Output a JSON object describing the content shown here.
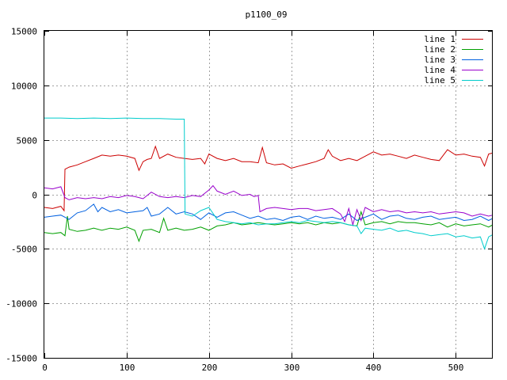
{
  "chart_data": {
    "type": "line",
    "title": "p1100_09",
    "xlabel": "",
    "ylabel": "",
    "xlim": [
      0,
      545
    ],
    "ylim": [
      -15000,
      15000
    ],
    "x_ticks": [
      "0",
      "100",
      "200",
      "300",
      "400",
      "500"
    ],
    "y_ticks": [
      "-15000",
      "-10000",
      "-5000",
      "0",
      "5000",
      "10000",
      "15000"
    ],
    "grid": true,
    "legend_position": "top-right",
    "series": [
      {
        "name": "line 1",
        "color": "#cc0000",
        "points": [
          [
            0,
            -1200
          ],
          [
            10,
            -1300
          ],
          [
            20,
            -1100
          ],
          [
            24,
            -1500
          ],
          [
            25,
            2300
          ],
          [
            30,
            2500
          ],
          [
            40,
            2700
          ],
          [
            50,
            3000
          ],
          [
            60,
            3300
          ],
          [
            70,
            3600
          ],
          [
            80,
            3500
          ],
          [
            90,
            3600
          ],
          [
            100,
            3500
          ],
          [
            110,
            3300
          ],
          [
            115,
            2200
          ],
          [
            120,
            3000
          ],
          [
            125,
            3200
          ],
          [
            130,
            3300
          ],
          [
            135,
            4400
          ],
          [
            140,
            3300
          ],
          [
            150,
            3700
          ],
          [
            160,
            3400
          ],
          [
            170,
            3300
          ],
          [
            180,
            3200
          ],
          [
            190,
            3300
          ],
          [
            195,
            2800
          ],
          [
            200,
            3700
          ],
          [
            210,
            3300
          ],
          [
            220,
            3100
          ],
          [
            230,
            3300
          ],
          [
            240,
            3000
          ],
          [
            250,
            3000
          ],
          [
            260,
            2900
          ],
          [
            265,
            4300
          ],
          [
            270,
            2900
          ],
          [
            280,
            2700
          ],
          [
            290,
            2800
          ],
          [
            300,
            2400
          ],
          [
            310,
            2600
          ],
          [
            320,
            2800
          ],
          [
            330,
            3000
          ],
          [
            340,
            3300
          ],
          [
            345,
            4100
          ],
          [
            350,
            3500
          ],
          [
            360,
            3100
          ],
          [
            370,
            3300
          ],
          [
            380,
            3100
          ],
          [
            390,
            3500
          ],
          [
            400,
            3900
          ],
          [
            410,
            3600
          ],
          [
            420,
            3700
          ],
          [
            430,
            3500
          ],
          [
            440,
            3300
          ],
          [
            450,
            3600
          ],
          [
            460,
            3400
          ],
          [
            470,
            3200
          ],
          [
            480,
            3100
          ],
          [
            490,
            4100
          ],
          [
            500,
            3600
          ],
          [
            510,
            3700
          ],
          [
            520,
            3500
          ],
          [
            530,
            3400
          ],
          [
            535,
            2600
          ],
          [
            540,
            3700
          ],
          [
            545,
            3800
          ]
        ]
      },
      {
        "name": "line 2",
        "color": "#00a000",
        "points": [
          [
            0,
            -3500
          ],
          [
            10,
            -3600
          ],
          [
            20,
            -3500
          ],
          [
            25,
            -3800
          ],
          [
            28,
            -2000
          ],
          [
            30,
            -3200
          ],
          [
            40,
            -3400
          ],
          [
            50,
            -3300
          ],
          [
            60,
            -3100
          ],
          [
            70,
            -3300
          ],
          [
            80,
            -3100
          ],
          [
            90,
            -3200
          ],
          [
            100,
            -3000
          ],
          [
            110,
            -3300
          ],
          [
            115,
            -4300
          ],
          [
            120,
            -3300
          ],
          [
            130,
            -3200
          ],
          [
            140,
            -3500
          ],
          [
            145,
            -2200
          ],
          [
            150,
            -3300
          ],
          [
            160,
            -3100
          ],
          [
            170,
            -3300
          ],
          [
            180,
            -3200
          ],
          [
            190,
            -3000
          ],
          [
            200,
            -3300
          ],
          [
            210,
            -2900
          ],
          [
            220,
            -2800
          ],
          [
            230,
            -2600
          ],
          [
            240,
            -2800
          ],
          [
            250,
            -2700
          ],
          [
            260,
            -2600
          ],
          [
            270,
            -2700
          ],
          [
            280,
            -2800
          ],
          [
            290,
            -2700
          ],
          [
            300,
            -2600
          ],
          [
            310,
            -2700
          ],
          [
            320,
            -2600
          ],
          [
            330,
            -2800
          ],
          [
            340,
            -2600
          ],
          [
            350,
            -2700
          ],
          [
            360,
            -2600
          ],
          [
            370,
            -2800
          ],
          [
            380,
            -2900
          ],
          [
            385,
            -1600
          ],
          [
            390,
            -2800
          ],
          [
            400,
            -2600
          ],
          [
            410,
            -2500
          ],
          [
            420,
            -2700
          ],
          [
            430,
            -2500
          ],
          [
            440,
            -2600
          ],
          [
            450,
            -2600
          ],
          [
            460,
            -2700
          ],
          [
            470,
            -2800
          ],
          [
            480,
            -2600
          ],
          [
            490,
            -3000
          ],
          [
            500,
            -2700
          ],
          [
            510,
            -2900
          ],
          [
            520,
            -2800
          ],
          [
            530,
            -2700
          ],
          [
            540,
            -3000
          ],
          [
            545,
            -2800
          ]
        ]
      },
      {
        "name": "line 3",
        "color": "#0060e0",
        "points": [
          [
            0,
            -2100
          ],
          [
            10,
            -2000
          ],
          [
            20,
            -1900
          ],
          [
            30,
            -2300
          ],
          [
            40,
            -1700
          ],
          [
            50,
            -1500
          ],
          [
            60,
            -900
          ],
          [
            65,
            -1600
          ],
          [
            70,
            -1200
          ],
          [
            80,
            -1600
          ],
          [
            90,
            -1400
          ],
          [
            100,
            -1700
          ],
          [
            110,
            -1600
          ],
          [
            120,
            -1500
          ],
          [
            125,
            -1200
          ],
          [
            130,
            -2000
          ],
          [
            140,
            -1800
          ],
          [
            150,
            -1200
          ],
          [
            160,
            -1800
          ],
          [
            170,
            -1600
          ],
          [
            180,
            -1800
          ],
          [
            190,
            -2300
          ],
          [
            200,
            -1700
          ],
          [
            210,
            -2100
          ],
          [
            220,
            -1700
          ],
          [
            230,
            -1600
          ],
          [
            240,
            -1900
          ],
          [
            250,
            -2200
          ],
          [
            260,
            -2000
          ],
          [
            270,
            -2300
          ],
          [
            280,
            -2200
          ],
          [
            290,
            -2400
          ],
          [
            300,
            -2100
          ],
          [
            310,
            -2000
          ],
          [
            320,
            -2300
          ],
          [
            330,
            -2000
          ],
          [
            340,
            -2200
          ],
          [
            350,
            -2100
          ],
          [
            360,
            -2300
          ],
          [
            370,
            -1800
          ],
          [
            380,
            -2400
          ],
          [
            390,
            -2100
          ],
          [
            400,
            -1800
          ],
          [
            410,
            -2300
          ],
          [
            420,
            -2000
          ],
          [
            430,
            -1900
          ],
          [
            440,
            -2200
          ],
          [
            450,
            -2300
          ],
          [
            460,
            -2100
          ],
          [
            470,
            -2000
          ],
          [
            480,
            -2300
          ],
          [
            490,
            -2200
          ],
          [
            500,
            -2100
          ],
          [
            510,
            -2400
          ],
          [
            520,
            -2300
          ],
          [
            530,
            -2000
          ],
          [
            540,
            -2400
          ],
          [
            545,
            -2200
          ]
        ]
      },
      {
        "name": "line 4",
        "color": "#9900cc",
        "points": [
          [
            0,
            600
          ],
          [
            10,
            500
          ],
          [
            20,
            700
          ],
          [
            25,
            -300
          ],
          [
            30,
            -500
          ],
          [
            40,
            -300
          ],
          [
            50,
            -400
          ],
          [
            60,
            -300
          ],
          [
            70,
            -400
          ],
          [
            80,
            -200
          ],
          [
            90,
            -300
          ],
          [
            100,
            -100
          ],
          [
            110,
            -200
          ],
          [
            120,
            -400
          ],
          [
            130,
            200
          ],
          [
            140,
            -200
          ],
          [
            150,
            -300
          ],
          [
            160,
            -200
          ],
          [
            170,
            -300
          ],
          [
            180,
            -100
          ],
          [
            190,
            -200
          ],
          [
            200,
            400
          ],
          [
            205,
            800
          ],
          [
            210,
            300
          ],
          [
            220,
            0
          ],
          [
            230,
            300
          ],
          [
            240,
            -100
          ],
          [
            250,
            0
          ],
          [
            255,
            -200
          ],
          [
            260,
            -100
          ],
          [
            262,
            -1600
          ],
          [
            270,
            -1300
          ],
          [
            280,
            -1200
          ],
          [
            290,
            -1300
          ],
          [
            300,
            -1400
          ],
          [
            310,
            -1300
          ],
          [
            320,
            -1300
          ],
          [
            330,
            -1500
          ],
          [
            340,
            -1400
          ],
          [
            350,
            -1300
          ],
          [
            360,
            -1800
          ],
          [
            365,
            -2500
          ],
          [
            370,
            -1300
          ],
          [
            375,
            -2800
          ],
          [
            380,
            -1400
          ],
          [
            385,
            -2400
          ],
          [
            390,
            -1200
          ],
          [
            400,
            -1600
          ],
          [
            410,
            -1400
          ],
          [
            420,
            -1600
          ],
          [
            430,
            -1500
          ],
          [
            440,
            -1700
          ],
          [
            450,
            -1600
          ],
          [
            460,
            -1700
          ],
          [
            470,
            -1600
          ],
          [
            480,
            -1800
          ],
          [
            490,
            -1700
          ],
          [
            500,
            -1600
          ],
          [
            510,
            -1700
          ],
          [
            520,
            -2000
          ],
          [
            530,
            -1800
          ],
          [
            540,
            -2000
          ],
          [
            545,
            -1900
          ]
        ]
      },
      {
        "name": "line 5",
        "color": "#00cccc",
        "points": [
          [
            0,
            7000
          ],
          [
            20,
            7000
          ],
          [
            40,
            6950
          ],
          [
            60,
            7000
          ],
          [
            80,
            6950
          ],
          [
            100,
            7000
          ],
          [
            120,
            6950
          ],
          [
            140,
            6950
          ],
          [
            160,
            6900
          ],
          [
            170,
            6900
          ],
          [
            171,
            -1800
          ],
          [
            180,
            -2000
          ],
          [
            190,
            -1500
          ],
          [
            200,
            -1200
          ],
          [
            210,
            -2300
          ],
          [
            220,
            -2500
          ],
          [
            230,
            -2600
          ],
          [
            240,
            -2700
          ],
          [
            250,
            -2600
          ],
          [
            260,
            -2800
          ],
          [
            270,
            -2700
          ],
          [
            280,
            -2700
          ],
          [
            290,
            -2600
          ],
          [
            300,
            -2500
          ],
          [
            310,
            -2600
          ],
          [
            320,
            -2400
          ],
          [
            330,
            -2500
          ],
          [
            340,
            -2600
          ],
          [
            350,
            -2500
          ],
          [
            360,
            -2600
          ],
          [
            370,
            -2800
          ],
          [
            380,
            -2900
          ],
          [
            385,
            -3600
          ],
          [
            390,
            -3100
          ],
          [
            400,
            -3200
          ],
          [
            410,
            -3300
          ],
          [
            420,
            -3100
          ],
          [
            430,
            -3400
          ],
          [
            440,
            -3300
          ],
          [
            450,
            -3500
          ],
          [
            460,
            -3600
          ],
          [
            470,
            -3800
          ],
          [
            480,
            -3700
          ],
          [
            490,
            -3600
          ],
          [
            500,
            -3900
          ],
          [
            510,
            -3800
          ],
          [
            520,
            -4000
          ],
          [
            530,
            -3900
          ],
          [
            535,
            -5000
          ],
          [
            540,
            -3900
          ],
          [
            545,
            -3700
          ]
        ]
      }
    ]
  }
}
